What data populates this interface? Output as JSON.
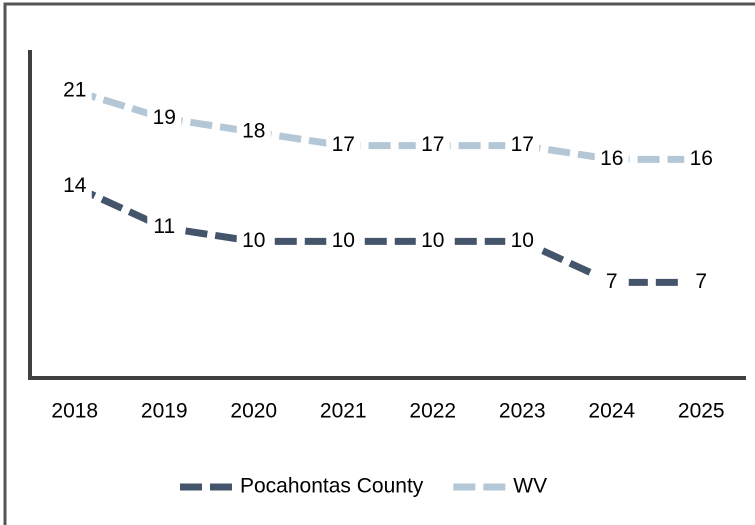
{
  "chart_data": {
    "type": "line",
    "categories": [
      "2018",
      "2019",
      "2020",
      "2021",
      "2022",
      "2023",
      "2024",
      "2025"
    ],
    "series": [
      {
        "name": "Pocahontas County",
        "color": "#44546a",
        "values": [
          14,
          11,
          10,
          10,
          10,
          10,
          7,
          7
        ]
      },
      {
        "name": "WV",
        "color": "#b4c7d6",
        "values": [
          21,
          19,
          18,
          17,
          17,
          17,
          16,
          16
        ]
      }
    ],
    "ylim": [
      0,
      24
    ],
    "legend": "bottom",
    "data_labels": true,
    "dashed": true
  }
}
